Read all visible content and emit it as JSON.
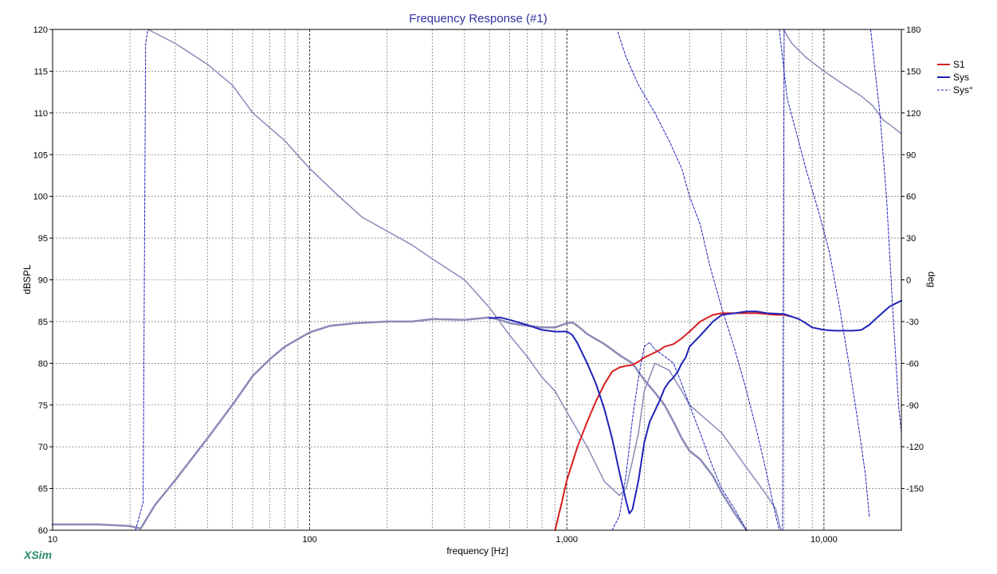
{
  "app": {
    "brand": "XSim"
  },
  "colors": {
    "s1": "#d81e1e",
    "sys": "#1e22b8",
    "sys_phase": "#1e22b8",
    "gray_curve": "#8a8ab8",
    "title": "#3030a0",
    "brand": "#2a8a6a",
    "grid_major": "#000000",
    "grid_minor": "#555555"
  },
  "chart_data": {
    "type": "line",
    "title": "Frequency Response (#1)",
    "xlabel": "frequency [Hz]",
    "ylabel": "dBSPL",
    "y2label": "deg",
    "x_scale": "log",
    "xlim": [
      10,
      20000
    ],
    "ylim": [
      60,
      120
    ],
    "y2lim": [
      -180,
      180
    ],
    "x_tick_labels": [
      {
        "value": 10,
        "label": "10"
      },
      {
        "value": 100,
        "label": "100"
      },
      {
        "value": 1000,
        "label": "1,000"
      },
      {
        "value": 10000,
        "label": "10,000"
      }
    ],
    "y_ticks": [
      60,
      65,
      70,
      75,
      80,
      85,
      90,
      95,
      100,
      105,
      110,
      115,
      120
    ],
    "y2_ticks": [
      -150,
      -120,
      -90,
      -60,
      -30,
      0,
      30,
      60,
      90,
      120,
      150,
      180
    ],
    "grid": true,
    "legend": {
      "position": "top-right",
      "entries": [
        "S1",
        "Sys",
        "Sys°"
      ]
    },
    "series": [
      {
        "name": "S1",
        "axis": "left",
        "style": "solid",
        "color_key": "s1",
        "width": 2,
        "points": [
          [
            900,
            60
          ],
          [
            950,
            63
          ],
          [
            1000,
            66
          ],
          [
            1100,
            70
          ],
          [
            1200,
            73
          ],
          [
            1300,
            75.5
          ],
          [
            1400,
            77.5
          ],
          [
            1500,
            79
          ],
          [
            1600,
            79.5
          ],
          [
            1700,
            79.7
          ],
          [
            1800,
            79.8
          ],
          [
            1900,
            80.2
          ],
          [
            2000,
            80.7
          ],
          [
            2100,
            81
          ],
          [
            2200,
            81.3
          ],
          [
            2300,
            81.6
          ],
          [
            2400,
            82
          ],
          [
            2600,
            82.3
          ],
          [
            2800,
            83
          ],
          [
            3000,
            83.8
          ],
          [
            3300,
            85
          ],
          [
            3700,
            85.8
          ],
          [
            4000,
            86
          ],
          [
            4500,
            86
          ],
          [
            5000,
            86
          ],
          [
            5500,
            86
          ],
          [
            6000,
            85.9
          ],
          [
            6500,
            85.8
          ],
          [
            7000,
            85.8
          ],
          [
            7500,
            85.6
          ]
        ]
      },
      {
        "name": "Sys",
        "axis": "left",
        "style": "solid",
        "color_key": "sys",
        "width": 2,
        "points": [
          [
            500,
            85.4
          ],
          [
            550,
            85.5
          ],
          [
            600,
            85.2
          ],
          [
            700,
            84.6
          ],
          [
            800,
            84
          ],
          [
            900,
            83.8
          ],
          [
            1000,
            83.8
          ],
          [
            1050,
            83.4
          ],
          [
            1100,
            82.4
          ],
          [
            1200,
            80
          ],
          [
            1300,
            77.5
          ],
          [
            1400,
            74.5
          ],
          [
            1500,
            71
          ],
          [
            1600,
            67
          ],
          [
            1700,
            63.5
          ],
          [
            1750,
            62
          ],
          [
            1800,
            62.5
          ],
          [
            1900,
            66
          ],
          [
            2000,
            70.5
          ],
          [
            2100,
            73
          ],
          [
            2200,
            74.3
          ],
          [
            2300,
            75.6
          ],
          [
            2400,
            77
          ],
          [
            2500,
            77.8
          ],
          [
            2600,
            78.3
          ],
          [
            2700,
            79
          ],
          [
            2800,
            80
          ],
          [
            2900,
            80.7
          ],
          [
            3000,
            82
          ],
          [
            3300,
            83.3
          ],
          [
            3700,
            85
          ],
          [
            4000,
            85.8
          ],
          [
            4500,
            86
          ],
          [
            5000,
            86.2
          ],
          [
            5500,
            86.2
          ],
          [
            6000,
            86
          ],
          [
            7000,
            85.9
          ],
          [
            8000,
            85.3
          ],
          [
            8500,
            84.8
          ],
          [
            9000,
            84.3
          ],
          [
            10000,
            84
          ],
          [
            11000,
            83.9
          ],
          [
            12000,
            83.9
          ],
          [
            13000,
            83.9
          ],
          [
            14000,
            84
          ],
          [
            15000,
            84.6
          ],
          [
            16000,
            85.4
          ],
          [
            18000,
            86.8
          ],
          [
            20000,
            87.5
          ]
        ]
      },
      {
        "name": "Sys°",
        "axis": "right",
        "style": "dashed",
        "color_key": "sys_phase",
        "width": 1,
        "segments": [
          [
            [
              21,
              -180
            ],
            [
              22.5,
              -160
            ],
            [
              23,
              170
            ],
            [
              23.5,
              180
            ]
          ],
          [
            [
              1500,
              -180
            ],
            [
              1600,
              -170
            ],
            [
              1700,
              -140
            ],
            [
              1800,
              -100
            ],
            [
              1900,
              -70
            ],
            [
              2000,
              -48
            ],
            [
              2100,
              -45
            ],
            [
              2200,
              -50
            ],
            [
              2400,
              -55
            ],
            [
              2600,
              -60
            ],
            [
              2800,
              -75
            ],
            [
              3000,
              -90
            ],
            [
              3300,
              -110
            ],
            [
              3700,
              -135
            ],
            [
              4000,
              -150
            ],
            [
              4500,
              -165
            ],
            [
              5000,
              -180
            ]
          ],
          [
            [
              1580,
              178
            ],
            [
              1700,
              160
            ],
            [
              1900,
              140
            ],
            [
              2200,
              120
            ],
            [
              2500,
              100
            ],
            [
              2800,
              80
            ],
            [
              3000,
              60
            ],
            [
              3300,
              40
            ],
            [
              3600,
              10
            ],
            [
              4000,
              -20
            ],
            [
              4500,
              -50
            ],
            [
              5000,
              -80
            ],
            [
              5500,
              -110
            ],
            [
              6000,
              -140
            ],
            [
              6500,
              -170
            ],
            [
              6700,
              -180
            ]
          ],
          [
            [
              6700,
              180
            ],
            [
              6800,
              170
            ],
            [
              7200,
              130
            ],
            [
              7700,
              110
            ],
            [
              8500,
              80
            ],
            [
              9500,
              50
            ],
            [
              10500,
              20
            ],
            [
              11500,
              -20
            ],
            [
              12500,
              -60
            ],
            [
              13500,
              -100
            ],
            [
              14500,
              -140
            ],
            [
              15000,
              -170
            ]
          ],
          [
            [
              15200,
              180
            ],
            [
              15800,
              150
            ],
            [
              16500,
              120
            ],
            [
              17500,
              60
            ],
            [
              18500,
              -20
            ],
            [
              19500,
              -90
            ],
            [
              20000,
              -110
            ]
          ],
          [
            [
              6900,
              -180
            ],
            [
              6950,
              0
            ],
            [
              7000,
              180
            ]
          ]
        ]
      },
      {
        "name": "",
        "axis": "left",
        "style": "solid",
        "color_key": "gray_curve",
        "width": 2.5,
        "points": [
          [
            10,
            60.7
          ],
          [
            15,
            60.7
          ],
          [
            20,
            60.5
          ],
          [
            22,
            60.2
          ],
          [
            25,
            63
          ],
          [
            30,
            66
          ],
          [
            40,
            71
          ],
          [
            50,
            75
          ],
          [
            60,
            78.5
          ],
          [
            70,
            80.5
          ],
          [
            80,
            82
          ],
          [
            100,
            83.7
          ],
          [
            120,
            84.5
          ],
          [
            150,
            84.8
          ],
          [
            200,
            85
          ],
          [
            250,
            85
          ],
          [
            300,
            85.3
          ],
          [
            400,
            85.2
          ],
          [
            500,
            85.5
          ],
          [
            550,
            85.2
          ],
          [
            600,
            84.8
          ],
          [
            700,
            84.5
          ],
          [
            800,
            84.3
          ],
          [
            900,
            84.3
          ],
          [
            1000,
            84.8
          ],
          [
            1050,
            84.9
          ],
          [
            1100,
            84.5
          ],
          [
            1200,
            83.5
          ],
          [
            1400,
            82.3
          ],
          [
            1600,
            81
          ],
          [
            1800,
            80
          ],
          [
            2000,
            78
          ],
          [
            2200,
            76.5
          ],
          [
            2400,
            75
          ],
          [
            2600,
            73
          ],
          [
            2800,
            71
          ],
          [
            3000,
            69.5
          ],
          [
            3300,
            68.5
          ],
          [
            3700,
            66.5
          ],
          [
            4000,
            64.5
          ],
          [
            4500,
            62
          ],
          [
            5000,
            60
          ]
        ]
      },
      {
        "name": "",
        "axis": "right",
        "style": "solid",
        "color_key": "gray_curve",
        "width": 1.5,
        "points": [
          [
            23.5,
            180
          ],
          [
            30,
            170
          ],
          [
            40,
            155
          ],
          [
            50,
            140
          ],
          [
            60,
            120
          ],
          [
            80,
            100
          ],
          [
            100,
            80
          ],
          [
            130,
            60
          ],
          [
            160,
            45
          ],
          [
            200,
            35
          ],
          [
            250,
            25
          ],
          [
            300,
            15
          ],
          [
            400,
            0
          ],
          [
            500,
            -20
          ],
          [
            600,
            -40
          ],
          [
            700,
            -55
          ],
          [
            800,
            -70
          ],
          [
            900,
            -80
          ],
          [
            1000,
            -95
          ],
          [
            1200,
            -120
          ],
          [
            1400,
            -145
          ],
          [
            1600,
            -155
          ],
          [
            1700,
            -150
          ],
          [
            1800,
            -130
          ],
          [
            1900,
            -110
          ],
          [
            2000,
            -80
          ],
          [
            2200,
            -60
          ],
          [
            2500,
            -65
          ],
          [
            2800,
            -80
          ],
          [
            3000,
            -90
          ],
          [
            4000,
            -110
          ],
          [
            5000,
            -135
          ],
          [
            6000,
            -155
          ],
          [
            6500,
            -165
          ],
          [
            6800,
            -180
          ]
        ],
        "post": [
          [
            6950,
            180
          ],
          [
            7500,
            170
          ],
          [
            8500,
            160
          ],
          [
            10000,
            150
          ],
          [
            12000,
            140
          ],
          [
            14000,
            132
          ],
          [
            15500,
            125
          ],
          [
            17000,
            115
          ],
          [
            18500,
            110
          ],
          [
            20000,
            105
          ]
        ]
      }
    ]
  }
}
